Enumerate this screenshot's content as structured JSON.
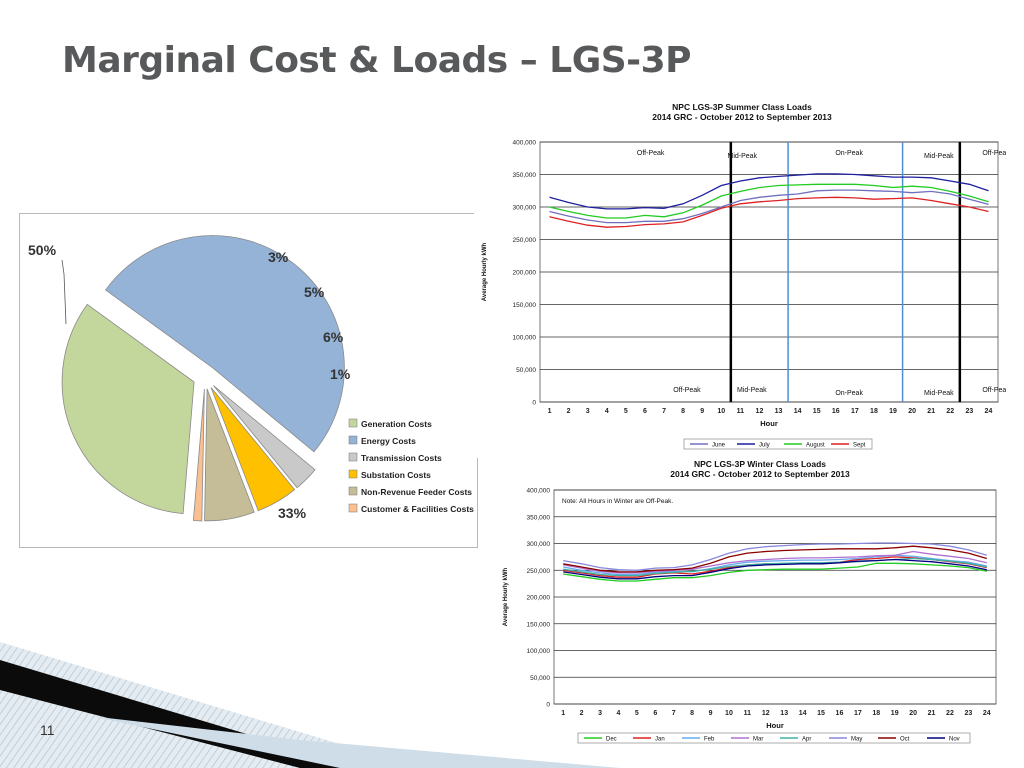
{
  "slide": {
    "title": "Marginal Cost & Loads – LGS-3P",
    "page_number": "11"
  },
  "chart_data": [
    {
      "type": "pie",
      "categories": [
        "Generation Costs",
        "Energy Costs",
        "Transmission Costs",
        "Substation Costs",
        "Non-Revenue Feeder Costs",
        "Customer & Facilities Costs"
      ],
      "values": [
        33,
        50,
        3,
        5,
        6,
        1
      ],
      "labels": [
        "33%",
        "50%",
        "3%",
        "5%",
        "6%",
        "1%"
      ],
      "colors": [
        "#c3d69b",
        "#95b3d7",
        "#c9c9c9",
        "#ffc000",
        "#c4bd97",
        "#fac090"
      ],
      "exploded": true,
      "legend": "right",
      "title": ""
    },
    {
      "type": "line",
      "title": "NPC LGS-3P Summer Class Loads",
      "subtitle": "2014 GRC - October 2012 to September 2013",
      "xlabel": "Hour",
      "ylabel": "Average Hourly kWh",
      "x": [
        1,
        2,
        3,
        4,
        5,
        6,
        7,
        8,
        9,
        10,
        11,
        12,
        13,
        14,
        15,
        16,
        17,
        18,
        19,
        20,
        21,
        22,
        23,
        24
      ],
      "ylim": [
        0,
        400000
      ],
      "yticks": [
        "0",
        "50,000",
        "100,000",
        "150,000",
        "200,000",
        "250,000",
        "300,000",
        "350,000",
        "400,000"
      ],
      "grid": true,
      "legend": "bottom",
      "series": [
        {
          "name": "June",
          "color": "#7070c0",
          "values": [
            293000,
            286000,
            280000,
            276000,
            276000,
            278000,
            278000,
            282000,
            290000,
            300000,
            310000,
            315000,
            318000,
            320000,
            325000,
            326000,
            326000,
            325000,
            324000,
            322000,
            324000,
            320000,
            312000,
            304000
          ]
        },
        {
          "name": "July",
          "color": "#1f1fa0",
          "values": [
            315000,
            307000,
            300000,
            297000,
            297000,
            299000,
            298000,
            305000,
            318000,
            333000,
            340000,
            345000,
            347000,
            349000,
            351000,
            351000,
            350000,
            348000,
            346000,
            346000,
            345000,
            340000,
            335000,
            325000
          ]
        },
        {
          "name": "August",
          "color": "#22cc22",
          "values": [
            300000,
            293000,
            287000,
            283000,
            283000,
            287000,
            285000,
            291000,
            303000,
            317000,
            324000,
            330000,
            333000,
            334000,
            335000,
            335000,
            335000,
            333000,
            330000,
            332000,
            330000,
            324000,
            317000,
            308000
          ]
        },
        {
          "name": "Sept",
          "color": "#dd2222",
          "values": [
            285000,
            278000,
            272000,
            269000,
            270000,
            273000,
            274000,
            277000,
            287000,
            298000,
            305000,
            308000,
            310000,
            313000,
            314000,
            315000,
            314000,
            312000,
            313000,
            314000,
            310000,
            305000,
            300000,
            293000
          ]
        }
      ],
      "period_labels_top": [
        "Off-Peak",
        "Mid-Peak",
        "On-Peak",
        "Mid-Peak",
        "Off-Peak"
      ],
      "period_labels_bottom": [
        "Off-Peak",
        "Mid-Peak",
        "On-Peak",
        "Mid-Peak",
        "Off-Peak"
      ],
      "period_dividers": [
        {
          "x": 10.5,
          "style": "black"
        },
        {
          "x": 13.5,
          "style": "blue"
        },
        {
          "x": 19.5,
          "style": "blue"
        },
        {
          "x": 22.5,
          "style": "black"
        }
      ]
    },
    {
      "type": "line",
      "title": "NPC LGS-3P Winter Class Loads",
      "subtitle": "2014 GRC - October 2012 to September 2013",
      "xlabel": "Hour",
      "ylabel": "Average Hourly kWh",
      "annotation": "Note: All Hours in Winter are Off-Peak.",
      "x": [
        1,
        2,
        3,
        4,
        5,
        6,
        7,
        8,
        9,
        10,
        11,
        12,
        13,
        14,
        15,
        16,
        17,
        18,
        19,
        20,
        21,
        22,
        23,
        24
      ],
      "ylim": [
        0,
        400000
      ],
      "yticks": [
        "0",
        "50,000",
        "100,000",
        "150,000",
        "200,000",
        "250,000",
        "300,000",
        "350,000",
        "400,000"
      ],
      "grid": true,
      "legend": "bottom",
      "series": [
        {
          "name": "Dec",
          "color": "#22cc22",
          "values": [
            243000,
            238000,
            233000,
            230000,
            230000,
            233000,
            236000,
            236000,
            240000,
            246000,
            250000,
            251000,
            252000,
            252000,
            252000,
            254000,
            256000,
            263000,
            263000,
            262000,
            260000,
            258000,
            255000,
            248000
          ]
        },
        {
          "name": "Jan",
          "color": "#dd2222",
          "values": [
            250000,
            245000,
            240000,
            237000,
            237000,
            243000,
            245000,
            243000,
            248000,
            255000,
            260000,
            262000,
            262000,
            263000,
            262000,
            265000,
            270000,
            272000,
            275000,
            273000,
            270000,
            266000,
            262000,
            255000
          ]
        },
        {
          "name": "Feb",
          "color": "#66aaee",
          "values": [
            256000,
            250000,
            245000,
            242000,
            242000,
            246000,
            248000,
            247000,
            253000,
            260000,
            265000,
            267000,
            268000,
            269000,
            269000,
            270000,
            272000,
            275000,
            278000,
            276000,
            272000,
            268000,
            265000,
            258000
          ]
        },
        {
          "name": "Mar",
          "color": "#b070d0",
          "values": [
            260000,
            254000,
            248000,
            245000,
            245000,
            248000,
            250000,
            252000,
            258000,
            264000,
            268000,
            270000,
            272000,
            273000,
            273000,
            274000,
            275000,
            277000,
            278000,
            285000,
            280000,
            276000,
            272000,
            264000
          ]
        },
        {
          "name": "Apr",
          "color": "#40b0a0",
          "values": [
            252000,
            247000,
            242000,
            240000,
            240000,
            244000,
            246000,
            248000,
            252000,
            257000,
            260000,
            262000,
            263000,
            264000,
            264000,
            265000,
            266000,
            268000,
            270000,
            272000,
            270000,
            267000,
            263000,
            256000
          ]
        },
        {
          "name": "May",
          "color": "#8888dd",
          "values": [
            268000,
            262000,
            255000,
            251000,
            250000,
            254000,
            255000,
            260000,
            270000,
            282000,
            290000,
            294000,
            296000,
            298000,
            299000,
            299000,
            300000,
            301000,
            301000,
            300000,
            299000,
            295000,
            288000,
            278000
          ]
        },
        {
          "name": "Oct",
          "color": "#8b0000",
          "values": [
            262000,
            256000,
            250000,
            247000,
            247000,
            250000,
            251000,
            254000,
            263000,
            275000,
            282000,
            285000,
            287000,
            288000,
            289000,
            290000,
            290000,
            290000,
            292000,
            295000,
            292000,
            288000,
            282000,
            272000
          ]
        },
        {
          "name": "Nov",
          "color": "#000080",
          "values": [
            247000,
            242000,
            237000,
            234000,
            234000,
            238000,
            240000,
            240000,
            246000,
            253000,
            258000,
            260000,
            261000,
            262000,
            262000,
            264000,
            267000,
            268000,
            270000,
            268000,
            266000,
            262000,
            258000,
            251000
          ]
        }
      ]
    }
  ]
}
